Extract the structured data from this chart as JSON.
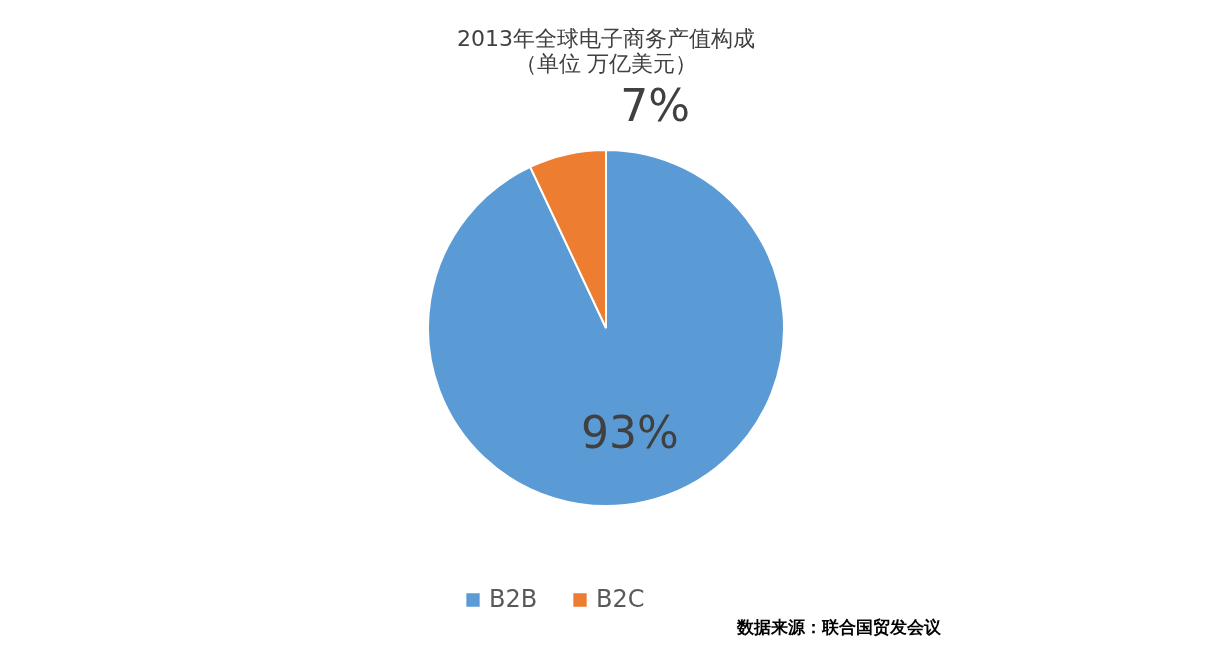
{
  "chart_data": {
    "type": "pie",
    "title": "2013年全球电子商务产值构成",
    "subtitle": "（单位 万亿美元）",
    "categories": [
      "B2B",
      "B2C"
    ],
    "values": [
      93,
      7
    ],
    "colors": [
      "#5b9bd5",
      "#ed7d31"
    ],
    "value_labels": [
      "93%",
      "7%"
    ],
    "legend": "bottom",
    "annotations": [
      "数据来源：联合国贸发会议"
    ]
  }
}
